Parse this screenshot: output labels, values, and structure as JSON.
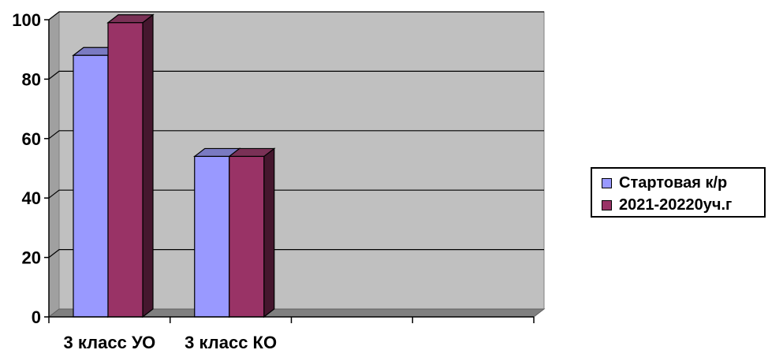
{
  "chart_data": {
    "type": "bar",
    "title": "",
    "xlabel": "",
    "ylabel": "",
    "categories": [
      "3 класс УО",
      "3 класс КО",
      "",
      ""
    ],
    "series": [
      {
        "name": "Стартовая к/р",
        "color": "#9999ff",
        "values": [
          88,
          54,
          null,
          null
        ]
      },
      {
        "name": "2021-20220уч.г",
        "color": "#993366",
        "values": [
          99,
          54,
          null,
          null
        ]
      }
    ],
    "ylim": [
      0,
      100
    ],
    "yticks": [
      "0",
      "20",
      "40",
      "60",
      "80",
      "100"
    ],
    "grid": true,
    "legend_position": "right",
    "plot_background": "#c0c0c0"
  }
}
